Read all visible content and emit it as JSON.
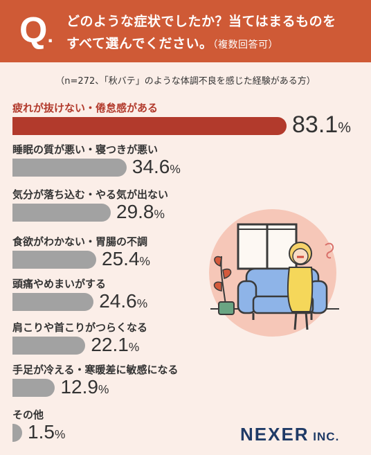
{
  "header": {
    "q_mark": "Q",
    "q_dot": ".",
    "line1": "どのような症状でしたか？当てはまるものを",
    "line2": "すべて選んでください。",
    "line2_note": "（複数回答可）"
  },
  "sample_note": "（n=272、「秋バテ」のような体調不良を感じた経験がある方）",
  "chart_data": {
    "type": "bar",
    "orientation": "horizontal",
    "categories": [
      "疲れが抜けない・倦怠感がある",
      "睡眠の質が悪い・寝つきが悪い",
      "気分が落ち込む・やる気が出ない",
      "食欲がわかない・胃腸の不調",
      "頭痛やめまいがする",
      "肩こりや首こりがつらくなる",
      "手足が冷える・寒暖差に敏感になる",
      "その他"
    ],
    "values": [
      83.1,
      34.6,
      29.8,
      25.4,
      24.6,
      22.1,
      12.9,
      1.5
    ],
    "value_labels": [
      "83.1",
      "34.6",
      "29.8",
      "25.4",
      "24.6",
      "22.1",
      "12.9",
      "1.5"
    ],
    "unit": "%",
    "colors": {
      "top": "#b23a2c",
      "others": "#a2a2a2",
      "top_label": "#b23a2c"
    }
  },
  "logo": {
    "main": "NEXER",
    "suffix": " INC."
  },
  "colors": {
    "header": "#cf5a36",
    "background": "#fbeee8",
    "logo": "#1f3a66"
  }
}
